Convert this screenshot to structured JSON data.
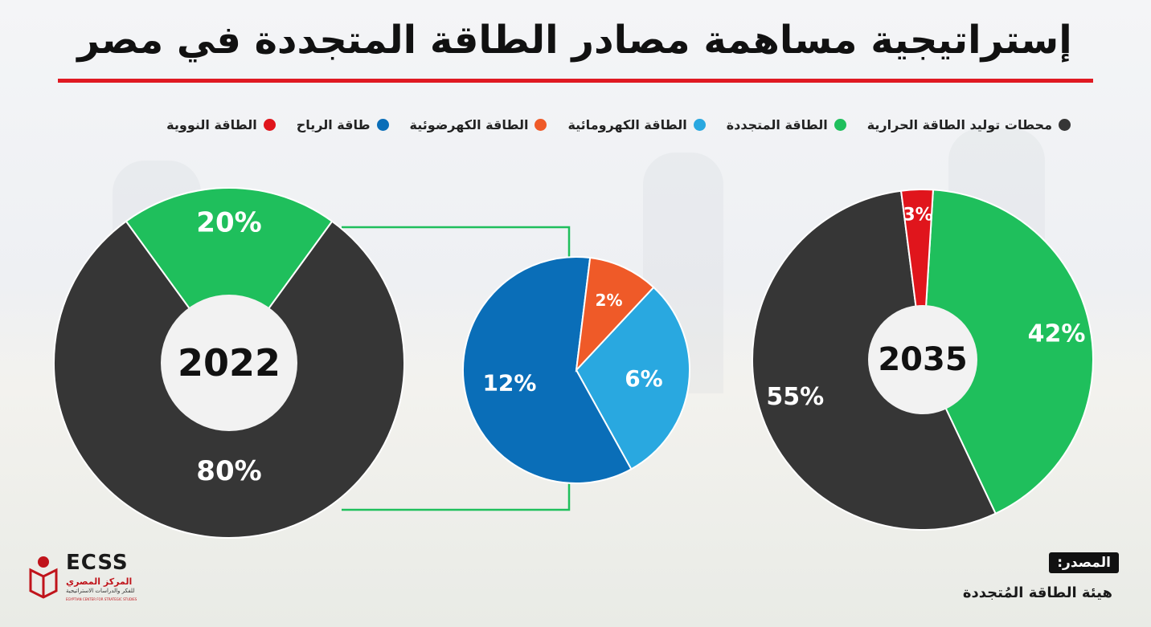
{
  "title": "إستراتيجية مساهمة مصادر الطاقة المتجددة في مصر",
  "legend": [
    {
      "label": "محطات توليد الطاقة الحرارية",
      "color": "#363636"
    },
    {
      "label": "الطاقة المتجددة",
      "color": "#1fbf5c"
    },
    {
      "label": "الطاقة الكهرومائية",
      "color": "#29a8e0"
    },
    {
      "label": "الطاقة الكهرضوئية",
      "color": "#ef5a28"
    },
    {
      "label": "طاقة الرياح",
      "color": "#0a6eb8"
    },
    {
      "label": "الطاقة النووية",
      "color": "#e0151c"
    }
  ],
  "chart_data": [
    {
      "type": "pie",
      "donut": true,
      "center_label": "2022",
      "slices": [
        {
          "label": "محطات توليد الطاقة الحرارية",
          "value": 80,
          "display": "80%",
          "color": "#363636"
        },
        {
          "label": "الطاقة المتجددة",
          "value": 20,
          "display": "20%",
          "color": "#1fbf5c"
        }
      ]
    },
    {
      "type": "pie",
      "donut": false,
      "breakdown_of": "الطاقة المتجددة",
      "slices": [
        {
          "label": "الطاقة الكهرومائية",
          "value": 6,
          "display": "6%",
          "color": "#29a8e0"
        },
        {
          "label": "طاقة الرياح",
          "value": 12,
          "display": "12%",
          "color": "#0a6eb8"
        },
        {
          "label": "الطاقة الكهرضوئية",
          "value": 2,
          "display": "2%",
          "color": "#ef5a28"
        }
      ]
    },
    {
      "type": "pie",
      "donut": true,
      "center_label": "2035",
      "slices": [
        {
          "label": "الطاقة المتجددة",
          "value": 42,
          "display": "42%",
          "color": "#1fbf5c"
        },
        {
          "label": "محطات توليد الطاقة الحرارية",
          "value": 55,
          "display": "55%",
          "color": "#363636"
        },
        {
          "label": "الطاقة النووية",
          "value": 3,
          "display": "3%",
          "color": "#e0151c"
        }
      ]
    }
  ],
  "source": {
    "label": "المصدر:",
    "value": "هيئة الطاقة المُتجددة"
  },
  "logo": {
    "abbr": "ECSS",
    "name_ar": "المركز المصري",
    "subtitle_ar": "للفكر والدراسات الاستراتيجية",
    "name_en": "EGYPTIAN CENTER FOR STRATEGIC STUDIES"
  }
}
